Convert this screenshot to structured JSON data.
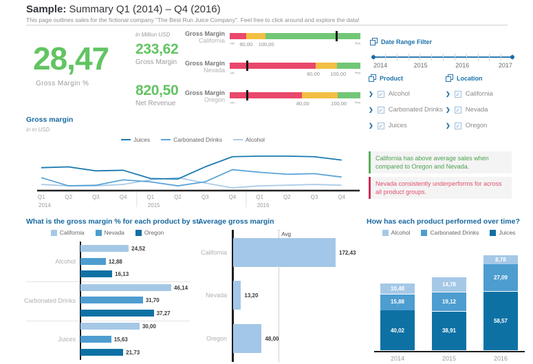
{
  "page": {
    "title_prefix": "Sample:",
    "title": "Summary Q1 (2014) – Q4 (2016)",
    "subtitle": "This page outlines sales for the fictional company \"The Best Run Juice Company\". Feel free to click around and explore the data!"
  },
  "colors": {
    "kpi_green": "#62c462",
    "title_blue": "#17689f",
    "filter_blue": "#1a72ab",
    "slider_blue": "#2e7cb4",
    "bullet_red": "#e9486b",
    "bullet_yellow": "#f1bf42",
    "bullet_green": "#72c776",
    "series_light": "#a5c8e7",
    "series_mid": "#4d9dd0",
    "series_dark": "#0e71a4",
    "anno_green": "#55b05a",
    "anno_red": "#cc2e55"
  },
  "kpi": {
    "unit_note": "in Million USD",
    "main_value": "28,47",
    "main_label": "Gross Margin %",
    "items": [
      {
        "value": "233,62",
        "label": "Gross Margin"
      },
      {
        "value": "820,50",
        "label": "Net Revenue"
      }
    ]
  },
  "bullets": [
    {
      "title": "Gross Margin",
      "region": "California",
      "segments_pct": [
        12.5,
        15,
        72.5
      ],
      "marker_pct": 81.5,
      "scale_labels": [
        {
          "text": "-∞",
          "pct": 0
        },
        {
          "text": "80,00",
          "pct": 12.5
        },
        {
          "text": "100,00",
          "pct": 28
        },
        {
          "text": "+∞",
          "pct": 100
        }
      ]
    },
    {
      "title": "Gross Margin",
      "region": "Nevada",
      "segments_pct": [
        66,
        16,
        18
      ],
      "marker_pct": 13,
      "scale_labels": [
        {
          "text": "-∞",
          "pct": 0
        },
        {
          "text": "80,00",
          "pct": 64
        },
        {
          "text": "100,00",
          "pct": 83
        },
        {
          "text": "+∞",
          "pct": 100
        }
      ]
    },
    {
      "title": "Gross Margin",
      "region": "Oregon",
      "segments_pct": [
        55,
        27.5,
        17.5
      ],
      "marker_pct": 13,
      "scale_labels": [
        {
          "text": "-∞",
          "pct": 0
        },
        {
          "text": "80,00",
          "pct": 56
        },
        {
          "text": "100,00",
          "pct": 83.5
        },
        {
          "text": "+∞",
          "pct": 100
        }
      ]
    }
  ],
  "date_filter": {
    "title": "Date Range Filter",
    "years": [
      "2014",
      "2015",
      "2016",
      "2017"
    ],
    "tick_count": 13
  },
  "filters": [
    {
      "title": "Product",
      "items": [
        "Alcohol",
        "Carbonated Drinks",
        "Juices"
      ],
      "checked": [
        true,
        true,
        true
      ]
    },
    {
      "title": "Location",
      "items": [
        "California",
        "Nevada",
        "Oregon"
      ],
      "checked": [
        true,
        true,
        true
      ]
    }
  ],
  "annotations": [
    {
      "tone": "positive",
      "text": "California has above average sales when compared to Oregon and Nevada."
    },
    {
      "tone": "negative",
      "text": "Nevada consistently underperforms for across all product groups."
    }
  ],
  "chart_data": [
    {
      "id": "gross_margin_over_time",
      "type": "line",
      "title": "Gross margin",
      "subtitle": "in m USD",
      "x": [
        "Q1",
        "Q2",
        "Q3",
        "Q4",
        "Q1",
        "Q2",
        "Q3",
        "Q4",
        "Q1",
        "Q2",
        "Q3",
        "Q4"
      ],
      "year_groups": [
        "2014",
        "2015",
        "2016"
      ],
      "ylim": [
        0,
        20
      ],
      "grid": false,
      "legend_position": "top-center",
      "note": "y values in m USD estimated from pixel heights; no y-axis labels shown",
      "series": [
        {
          "name": "Juices",
          "color": "#1a7ab0",
          "values": [
            10.8,
            11.2,
            9.2,
            9.5,
            5.4,
            5.1,
            11.2,
            16.3,
            16.6,
            16.6,
            16.3,
            14.6
          ]
        },
        {
          "name": "Carbonated Drinks",
          "color": "#5aa4d6",
          "values": [
            5.8,
            1.7,
            2.0,
            4.7,
            3.7,
            1.7,
            3.7,
            9.8,
            8.5,
            7.5,
            7.8,
            6.1
          ]
        },
        {
          "name": "Alcohol",
          "color": "#abcbe8",
          "values": [
            2.4,
            1.7,
            1.7,
            2.4,
            4.7,
            5.8,
            3.1,
            0.7,
            1.7,
            2.0,
            2.4,
            2.0
          ]
        }
      ]
    },
    {
      "id": "gross_margin_pct_by_product_state",
      "type": "bar",
      "orientation": "horizontal",
      "title": "What is the gross margin % for each product by st…",
      "categories": [
        "Alcohol",
        "Carbonated Drinks",
        "Juices"
      ],
      "xmax": 46.14,
      "legend_position": "top-center",
      "series": [
        {
          "name": "California",
          "color": "#a5c8e7",
          "values": [
            24.52,
            46.14,
            30.0
          ],
          "labels": [
            "24,52",
            "46,14",
            "30,00"
          ]
        },
        {
          "name": "Nevada",
          "color": "#4d9dd0",
          "values": [
            12.88,
            31.7,
            15.63
          ],
          "labels": [
            "12,88",
            "31,70",
            "15,63"
          ]
        },
        {
          "name": "Oregon",
          "color": "#0e71a4",
          "values": [
            16.13,
            37.27,
            21.73
          ],
          "labels": [
            "16,13",
            "37,27",
            "21,73"
          ]
        }
      ]
    },
    {
      "id": "average_gross_margin",
      "type": "bar",
      "orientation": "horizontal",
      "title": "Average gross margin",
      "categories": [
        "California",
        "Nevada",
        "Oregon"
      ],
      "values": [
        172.43,
        13.2,
        48.0
      ],
      "value_labels": [
        "172,43",
        "13,20",
        "48,00"
      ],
      "bar_color": "#a3c7e8",
      "xmax": 172.43,
      "avg_line": {
        "label": "Avg",
        "value": 77.88
      }
    },
    {
      "id": "product_performance_over_time",
      "type": "stacked_bar",
      "title": "How has each product performed over time?",
      "categories": [
        "2014",
        "2015",
        "2016"
      ],
      "legend_position": "top-center",
      "series": [
        {
          "name": "Alcohol",
          "color": "#a5c8e7",
          "values": [
            10.48,
            14.78,
            8.78
          ],
          "labels": [
            "10,48",
            "14,78",
            "8,78"
          ]
        },
        {
          "name": "Carbonated Drinks",
          "color": "#4d9dd0",
          "values": [
            15.88,
            19.12,
            27.09
          ],
          "labels": [
            "15,88",
            "19,12",
            "27,09"
          ]
        },
        {
          "name": "Juices",
          "color": "#0e71a4",
          "values": [
            40.02,
            38.91,
            58.57
          ],
          "labels": [
            "40,02",
            "38,91",
            "58,57"
          ]
        }
      ]
    }
  ]
}
